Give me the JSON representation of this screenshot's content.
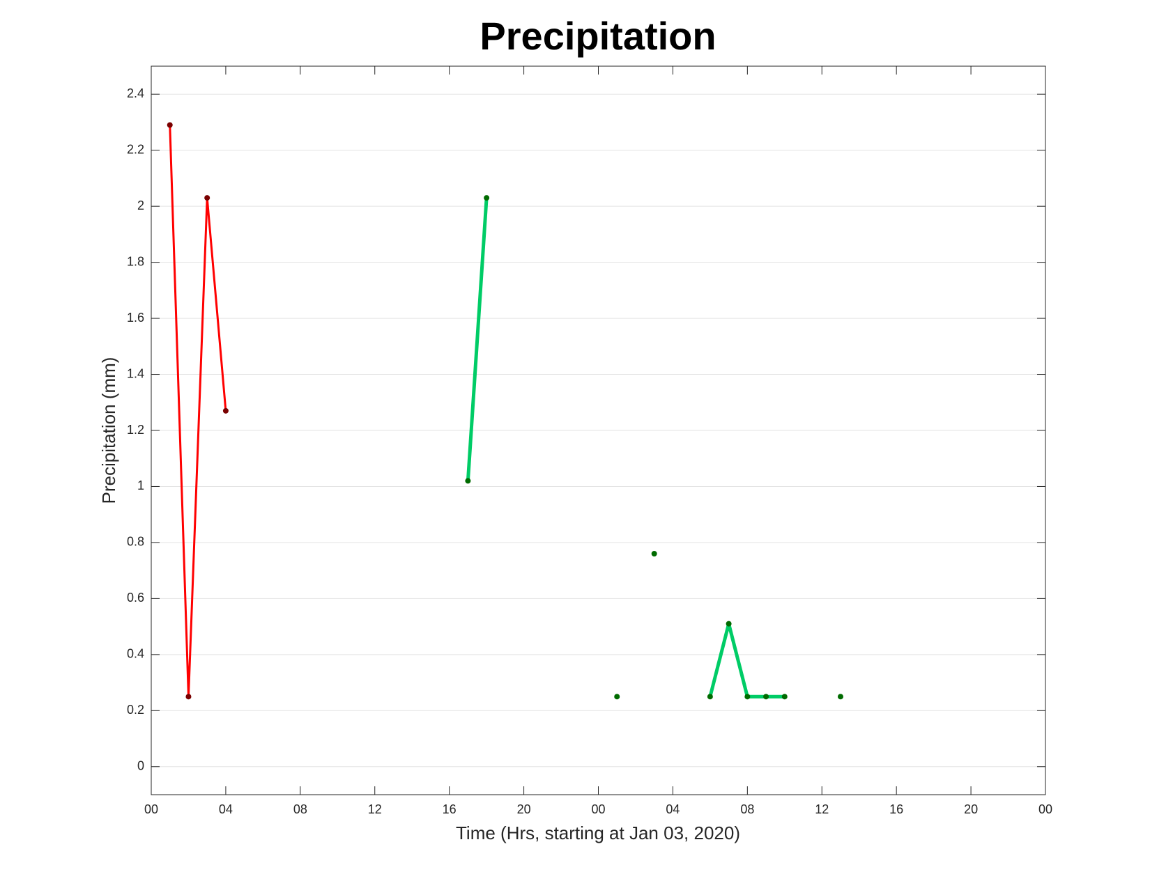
{
  "chart_data": {
    "type": "line",
    "title": "Precipitation",
    "x_label": "Time (Hrs, starting at Jan 03, 2020)",
    "y_label": "Precipitation (mm)",
    "series": [
      {
        "color": "#ff0000",
        "marker_color": "#7a0000",
        "x": [
          1,
          2,
          3,
          4
        ],
        "values": [
          2.29,
          0.25,
          2.03,
          1.27
        ]
      },
      {
        "color": "#00cc66",
        "marker_color": "#006b00",
        "x": [
          17,
          18,
          19,
          20,
          21,
          22,
          23,
          24,
          25,
          26,
          27,
          28,
          29,
          30,
          31,
          32,
          33,
          34,
          35,
          36,
          37
        ],
        "values": [
          1.02,
          2.03,
          null,
          null,
          null,
          null,
          null,
          null,
          0.25,
          null,
          0.76,
          null,
          null,
          0.25,
          0.51,
          0.25,
          0.25,
          0.25,
          null,
          null,
          0.25
        ]
      }
    ],
    "xlim": [
      0,
      48
    ],
    "xticks": [
      {
        "value": 0,
        "label": "00"
      },
      {
        "value": 4,
        "label": "04"
      },
      {
        "value": 8,
        "label": "08"
      },
      {
        "value": 12,
        "label": "12"
      },
      {
        "value": 16,
        "label": "16"
      },
      {
        "value": 20,
        "label": "20"
      },
      {
        "value": 24,
        "label": "00"
      },
      {
        "value": 28,
        "label": "04"
      },
      {
        "value": 32,
        "label": "08"
      },
      {
        "value": 36,
        "label": "12"
      },
      {
        "value": 40,
        "label": "16"
      },
      {
        "value": 44,
        "label": "20"
      },
      {
        "value": 48,
        "label": "00"
      }
    ],
    "ylim": [
      -0.1,
      2.5
    ],
    "yticks": [
      0,
      0.2,
      0.4,
      0.6,
      0.8,
      1,
      1.2,
      1.4,
      1.6,
      1.8,
      2,
      2.2,
      2.4
    ],
    "grid": true
  }
}
